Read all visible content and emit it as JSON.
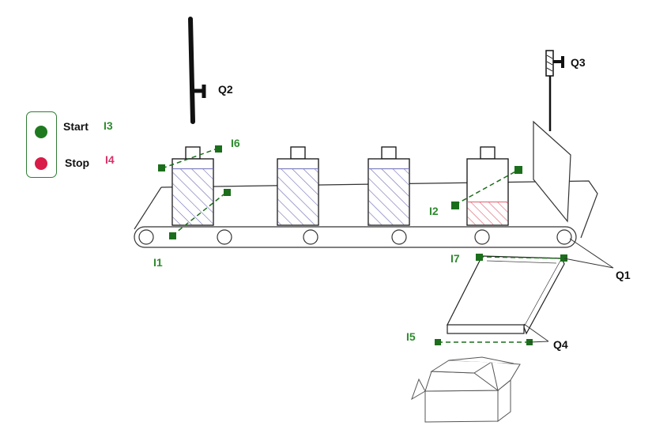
{
  "controls": {
    "start_label": "Start",
    "start_input": "I3",
    "stop_label": "Stop",
    "stop_input": "I4"
  },
  "labels": {
    "q1": "Q1",
    "q2": "Q2",
    "q3": "Q3",
    "q4": "Q4",
    "i1": "I1",
    "i2": "I2",
    "i5": "I5",
    "i6": "I6",
    "i7": "I7"
  },
  "colors": {
    "sensor_green": "#1b6e1b",
    "start_green": "#1f7a1f",
    "stop_red": "#d81b48",
    "label_green": "#2e8b2e",
    "label_red": "#d6336c",
    "fill_blue_hatch": "#6b6bb5",
    "fill_red_hatch": "#e05a6a"
  },
  "bottles": [
    {
      "id": "bottle-1",
      "fill_level": 0.85,
      "liquid": "blue"
    },
    {
      "id": "bottle-2",
      "fill_level": 0.85,
      "liquid": "blue"
    },
    {
      "id": "bottle-3",
      "fill_level": 0.85,
      "liquid": "blue"
    },
    {
      "id": "bottle-4",
      "fill_level": 0.35,
      "liquid": "red"
    }
  ]
}
